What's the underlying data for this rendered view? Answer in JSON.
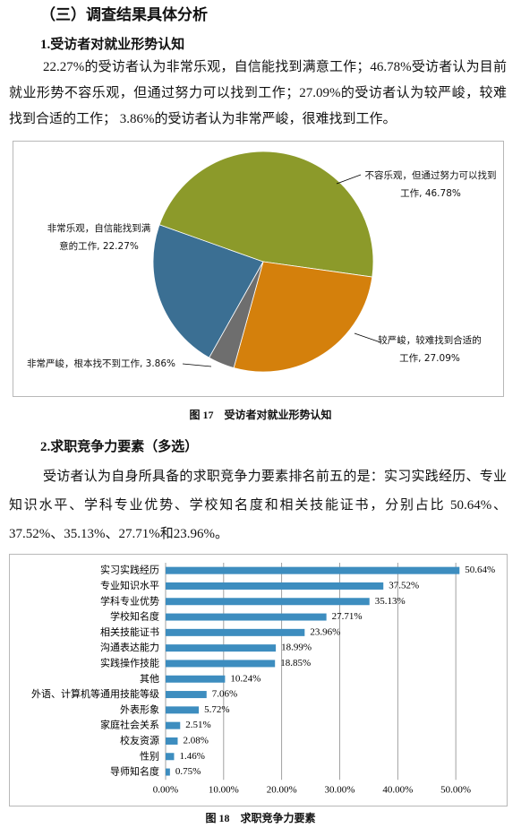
{
  "section_title": "（三）调查结果具体分析",
  "subsection_1": "1.受访者对就业形势认知",
  "paragraph_1": "22.27%的受访者认为非常乐观，自信能找到满意工作；46.78%受访者认为目前就业形势不容乐观，但通过努力可以找到工作；27.09%的受访者认为较严峻，较难找到合适的工作； 3.86%的受访者认为非常严峻，很难找到工作。",
  "subsection_2": "2.求职竞争力要素（多选）",
  "paragraph_2": "受访者认为自身所具备的求职竞争力要素排名前五的是：实习实践经历、专业知识水平、学科专业优势、学校知名度和相关技能证书，分别占比 50.64%、37.52%、35.13%、27.71%和23.96%。",
  "chart_data": [
    {
      "type": "pie",
      "caption": "图 17　受访者对就业形势认知",
      "values": [
        22.27,
        46.78,
        27.09,
        3.86
      ],
      "value_labels": [
        "非常乐观，自信能找到满意的工作, 22.27%",
        "不容乐观，但通过努力可以找到工作, 46.78%",
        "较严峻，较难找到合适的工作, 27.09%",
        "非常严峻，根本找不到工作, 3.86%"
      ],
      "colors": [
        "#3b6f93",
        "#8c9a2a",
        "#d4800c",
        "#6e6e6e"
      ]
    },
    {
      "type": "bar",
      "orientation": "horizontal",
      "caption": "图 18　求职竞争力要素",
      "categories": [
        "实习实践经历",
        "专业知识水平",
        "学科专业优势",
        "学校知名度",
        "相关技能证书",
        "沟通表达能力",
        "实践操作技能",
        "其他",
        "外语、计算机等通用技能等级",
        "外表形象",
        "家庭社会关系",
        "校友资源",
        "性别",
        "导师知名度"
      ],
      "values": [
        50.64,
        37.52,
        35.13,
        27.71,
        23.96,
        18.99,
        18.85,
        10.24,
        7.06,
        5.72,
        2.51,
        2.08,
        1.46,
        0.75
      ],
      "value_labels": [
        "50.64%",
        "37.52%",
        "35.13%",
        "27.71%",
        "23.96%",
        "18.99%",
        "18.85%",
        "10.24%",
        "7.06%",
        "5.72%",
        "2.51%",
        "2.08%",
        "1.46%",
        "0.75%"
      ],
      "color": "#3d8dbf",
      "xlim": [
        0,
        58
      ],
      "xticks": [
        {
          "value": 0,
          "label": "0.00%"
        },
        {
          "value": 10,
          "label": "10.00%"
        },
        {
          "value": 20,
          "label": "20.00%"
        },
        {
          "value": 30,
          "label": "30.00%"
        },
        {
          "value": 40,
          "label": "40.00%"
        },
        {
          "value": 50,
          "label": "50.00%"
        }
      ],
      "grid": true
    }
  ]
}
